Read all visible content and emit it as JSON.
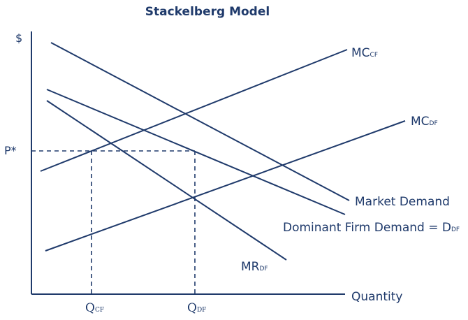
{
  "title": "Stackelberg Model",
  "y_axis_label": "$",
  "x_axis_label": "Quantity",
  "price_label": "P*",
  "curves": {
    "mc_cf": {
      "main": "MC",
      "sub": "CF"
    },
    "mc_df": {
      "main": "MC",
      "sub": "DF"
    },
    "market_demand": "Market Demand",
    "dominant_demand": {
      "main": "Dominant Firm Demand = D",
      "sub": "DF"
    },
    "mr_df": {
      "main": "MR",
      "sub": "DF"
    }
  },
  "quantities": {
    "q_cf": {
      "main": "Q",
      "sub": "CF"
    },
    "q_df": {
      "main": "Q",
      "sub": "DF"
    }
  },
  "colors": {
    "ink": "#1f3a6b",
    "background": "#ffffff"
  }
}
